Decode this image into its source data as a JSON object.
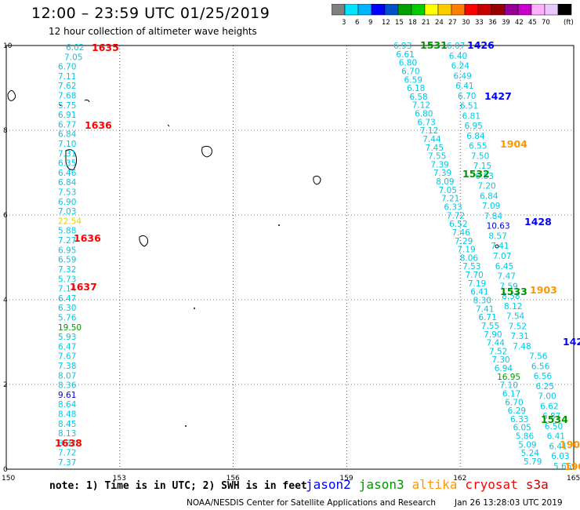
{
  "title": "12:00 – 23:59 UTC 01/25/2019",
  "subtitle": "12 hour collection of altimeter wave heights",
  "colorbar": {
    "unit_label": "(ft)",
    "colors": [
      "#808080",
      "#00e5ff",
      "#00b4ff",
      "#0000ff",
      "#0050c8",
      "#00a000",
      "#00cc00",
      "#ffff00",
      "#ffcc00",
      "#ff8000",
      "#ff0000",
      "#c80000",
      "#960000",
      "#960096",
      "#c800c8",
      "#ffb0ff",
      "#e8c8ff",
      "#000000"
    ],
    "labels": [
      "3",
      "6",
      "9",
      "12",
      "15",
      "18",
      "21",
      "24",
      "27",
      "30",
      "33",
      "36",
      "39",
      "42",
      "45",
      "70"
    ]
  },
  "axes": {
    "x_ticks": [
      "150",
      "153",
      "156",
      "159",
      "162",
      "165"
    ],
    "y_ticks": [
      "10",
      "8",
      "6",
      "4",
      "2",
      "0"
    ]
  },
  "footer_note": "note: 1) Time is in UTC; 2) SWH is in feet",
  "legend": [
    {
      "name": "jason2",
      "color": "#0000ff"
    },
    {
      "name": "jason3",
      "color": "#009600"
    },
    {
      "name": "altika",
      "color": "#ff9600"
    },
    {
      "name": "cryosat",
      "color": "#ff0000"
    },
    {
      "name": "s3a",
      "color": "#c80000"
    }
  ],
  "credit": "NOAA/NESDIS Center for Satellite Applications and Research",
  "timestamp": "Jan 26 13:28:03 UTC 2019",
  "tracks": [
    {
      "id": "west-track",
      "x": 152.1,
      "values": [
        "6.02",
        "7.05",
        "6.70",
        "7.11",
        "7.62",
        "7.68",
        "5.75",
        "6.91",
        "6.77",
        "6.84",
        "7.10",
        "7.31",
        "6.35",
        "6.46",
        "6.84",
        "7.53",
        "6.90",
        "7.03",
        "22.54",
        "5.88",
        "7.27",
        "6.95",
        "6.59",
        "7.32",
        "5.73",
        "7.14",
        "6.47",
        "6.30",
        "5.76",
        "19.50",
        "5.93",
        "6.47",
        "7.67",
        "7.38",
        "8.07",
        "8.36",
        "9.61",
        "8.64",
        "8.48",
        "8.45",
        "8.13",
        "8.32",
        "7.72",
        "7.37"
      ]
    },
    {
      "id": "mid-track",
      "values": [
        "6.93",
        "6.61",
        "6.80",
        "6.70",
        "6.59",
        "6.18",
        "6.58",
        "7.12",
        "6.80",
        "6.73",
        "7.12",
        "7.44",
        "7.45",
        "7.55",
        "7.39",
        "7.39",
        "8.09",
        "7.05",
        "7.21",
        "6.33",
        "7.72",
        "6.52",
        "7.46",
        "7.29",
        "7.19",
        "8.06",
        "7.53",
        "7.70",
        "7.19",
        "6.41",
        "8.30",
        "7.41",
        "6.71",
        "7.55",
        "7.90",
        "7.44",
        "7.52",
        "7.30",
        "6.94",
        "16.95",
        "7.10",
        "6.17",
        "6.70",
        "6.29",
        "6.33",
        "6.05",
        "5.86",
        "5.09",
        "5.24",
        "5.79"
      ]
    },
    {
      "id": "east-track",
      "values": [
        "6.07",
        "6.40",
        "6.24",
        "6.49",
        "6.41",
        "6.70",
        "6.51",
        "6.81",
        "6.95",
        "6.84",
        "6.55",
        "7.50",
        "7.15",
        "6.83",
        "7.20",
        "6.84",
        "7.09",
        "7.84",
        "10.63",
        "8.57",
        "7.41",
        "7.07",
        "6.45",
        "7.47",
        "7.59",
        "8.58",
        "8.12",
        "7.54",
        "7.52",
        "7.31",
        "7.48",
        "7.56",
        "6.56",
        "6.56",
        "6.25",
        "7.00",
        "6.62",
        "6.87",
        "6.50",
        "6.41",
        "6.41",
        "6.03",
        "5.65"
      ]
    }
  ],
  "time_labels": [
    {
      "text": "1635",
      "color": "#ff0000"
    },
    {
      "text": "1636",
      "color": "#ff0000"
    },
    {
      "text": "1636",
      "color": "#ff0000"
    },
    {
      "text": "1637",
      "color": "#ff0000"
    },
    {
      "text": "1638",
      "color": "#ff0000"
    },
    {
      "text": "1531",
      "color": "#009600"
    },
    {
      "text": "1426",
      "color": "#0000ff"
    },
    {
      "text": "1427",
      "color": "#0000ff"
    },
    {
      "text": "1904",
      "color": "#ff9600"
    },
    {
      "text": "1532",
      "color": "#009600"
    },
    {
      "text": "1428",
      "color": "#0000ff"
    },
    {
      "text": "1533",
      "color": "#009600"
    },
    {
      "text": "1903",
      "color": "#ff9600"
    },
    {
      "text": "142",
      "color": "#0000ff"
    },
    {
      "text": "1534",
      "color": "#009600"
    },
    {
      "text": "190",
      "color": "#ff9600"
    },
    {
      "text": "190",
      "color": "#ff9600"
    }
  ]
}
